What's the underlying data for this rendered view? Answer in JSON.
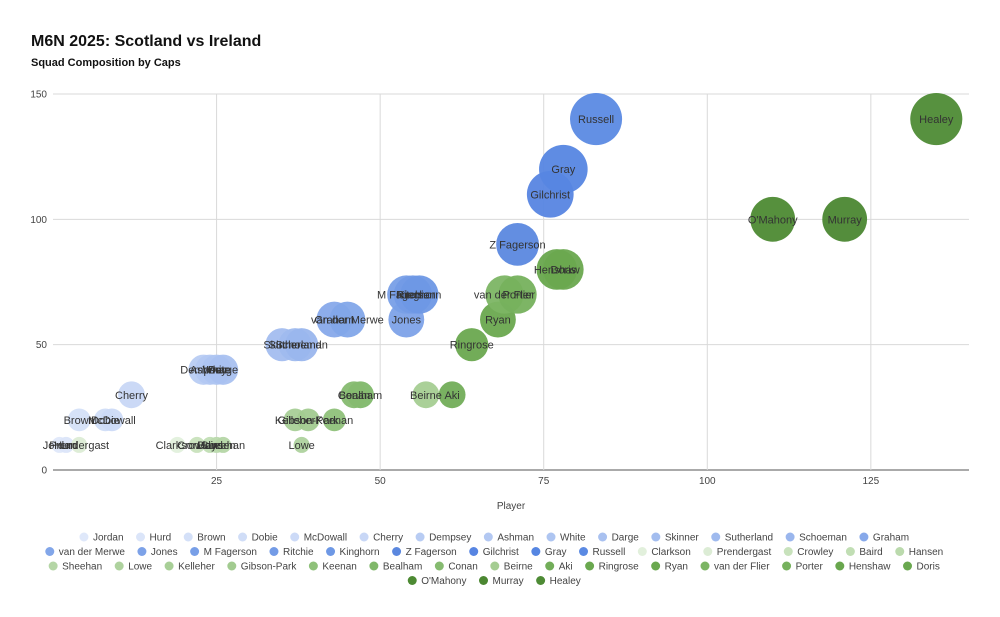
{
  "chart_data": {
    "type": "scatter",
    "title": "M6N 2025: Scotland vs Ireland",
    "subtitle": "Squad Composition by Caps",
    "xlabel": "Player",
    "ylabel": "",
    "xlim": [
      0,
      140
    ],
    "ylim": [
      0,
      150
    ],
    "xticks": [
      25,
      50,
      75,
      100,
      125
    ],
    "yticks": [
      0,
      50,
      100,
      150
    ],
    "grid": true,
    "legend_position": "bottom",
    "series": [
      {
        "name": "Jordan",
        "x": 1,
        "y": 10,
        "size": 1,
        "color": "#dfe8fa",
        "label": "Jordan"
      },
      {
        "name": "Hurd",
        "x": 2,
        "y": 10,
        "size": 1,
        "color": "#dbe5f9",
        "label": "Hurd"
      },
      {
        "name": "Brown",
        "x": 4,
        "y": 20,
        "size": 20,
        "color": "#d4e0f8",
        "label": "Brown"
      },
      {
        "name": "Dobie",
        "x": 8,
        "y": 20,
        "size": 20,
        "color": "#d0ddf7",
        "label": "Dobie"
      },
      {
        "name": "McDowall",
        "x": 9,
        "y": 20,
        "size": 20,
        "color": "#ccdaf7",
        "label": "McDowall"
      },
      {
        "name": "Cherry",
        "x": 12,
        "y": 30,
        "size": 30,
        "color": "#c8d7f6",
        "label": "Cherry"
      },
      {
        "name": "Dempsey",
        "x": 23,
        "y": 40,
        "size": 40,
        "color": "#b8ccf3",
        "label": "Dempsey"
      },
      {
        "name": "Ashman",
        "x": 24,
        "y": 40,
        "size": 40,
        "color": "#b3c8f2",
        "label": "Ashman"
      },
      {
        "name": "White",
        "x": 25,
        "y": 40,
        "size": 40,
        "color": "#aec5f1",
        "label": "White"
      },
      {
        "name": "Darge",
        "x": 26,
        "y": 40,
        "size": 40,
        "color": "#a9c1f0",
        "label": "Darge"
      },
      {
        "name": "Skinner",
        "x": 35,
        "y": 50,
        "size": 50,
        "color": "#a3bdef",
        "label": "Skinner"
      },
      {
        "name": "Sutherland",
        "x": 37,
        "y": 50,
        "size": 50,
        "color": "#9fbaee",
        "label": "Sutherland"
      },
      {
        "name": "Schoeman",
        "x": 38,
        "y": 50,
        "size": 50,
        "color": "#9ab6ed",
        "label": "Schoeman"
      },
      {
        "name": "Graham",
        "x": 43,
        "y": 60,
        "size": 60,
        "color": "#87a9ea",
        "label": "Graham"
      },
      {
        "name": "van der Merwe",
        "x": 45,
        "y": 60,
        "size": 60,
        "color": "#82a6e9",
        "label": "van der Merwe"
      },
      {
        "name": "Jones",
        "x": 54,
        "y": 60,
        "size": 60,
        "color": "#7da2e8",
        "label": "Jones"
      },
      {
        "name": "M Fagerson",
        "x": 54,
        "y": 70,
        "size": 70,
        "color": "#789fe7",
        "label": "M Fagerson"
      },
      {
        "name": "Ritchie",
        "x": 55,
        "y": 70,
        "size": 70,
        "color": "#739be6",
        "label": "Ritchie"
      },
      {
        "name": "Kinghorn",
        "x": 56,
        "y": 70,
        "size": 70,
        "color": "#6e98e5",
        "label": "Kinghorn"
      },
      {
        "name": "Z Fagerson",
        "x": 71,
        "y": 90,
        "size": 90,
        "color": "#5b88df",
        "label": "Z Fagerson"
      },
      {
        "name": "Gilchrist",
        "x": 76,
        "y": 110,
        "size": 110,
        "color": "#5785e2",
        "label": "Gilchrist"
      },
      {
        "name": "Gray",
        "x": 78,
        "y": 120,
        "size": 120,
        "color": "#5686e2",
        "label": "Gray"
      },
      {
        "name": "Russell",
        "x": 83,
        "y": 140,
        "size": 140,
        "color": "#5b8ae3",
        "label": "Russell"
      },
      {
        "name": "Clarkson",
        "x": 19,
        "y": 10,
        "size": 1,
        "color": "#e2f0dc",
        "label": "Clarkson"
      },
      {
        "name": "Prendergast",
        "x": 4,
        "y": 10,
        "size": 1,
        "color": "#dcecd5",
        "label": "Prendergast"
      },
      {
        "name": "Crowley",
        "x": 22,
        "y": 10,
        "size": 1,
        "color": "#c8e2bc",
        "label": "Crowley"
      },
      {
        "name": "Baird",
        "x": 24,
        "y": 10,
        "size": 1,
        "color": "#c1deb4",
        "label": "Baird"
      },
      {
        "name": "Hansen",
        "x": 25,
        "y": 10,
        "size": 1,
        "color": "#bbdaad",
        "label": "Hansen"
      },
      {
        "name": "Sheehan",
        "x": 26,
        "y": 10,
        "size": 1,
        "color": "#b5d6a6",
        "label": "Sheehan"
      },
      {
        "name": "Lowe",
        "x": 38,
        "y": 10,
        "size": 1,
        "color": "#aed29e",
        "label": "Lowe"
      },
      {
        "name": "Kelleher",
        "x": 37,
        "y": 20,
        "size": 20,
        "color": "#a8cf97",
        "label": "Kelleher"
      },
      {
        "name": "Gibson-Park",
        "x": 39,
        "y": 20,
        "size": 20,
        "color": "#a2cb90",
        "label": "Gibson-Park"
      },
      {
        "name": "Keenan",
        "x": 43,
        "y": 20,
        "size": 20,
        "color": "#8fc17a",
        "label": "Keenan"
      },
      {
        "name": "Bealham",
        "x": 47,
        "y": 30,
        "size": 30,
        "color": "#80b86a",
        "label": "Bealham"
      },
      {
        "name": "Conan",
        "x": 46,
        "y": 30,
        "size": 30,
        "color": "#86bb70",
        "label": "Conan"
      },
      {
        "name": "Beirne",
        "x": 57,
        "y": 30,
        "size": 30,
        "color": "#a5cd92",
        "label": "Beirne"
      },
      {
        "name": "Aki",
        "x": 61,
        "y": 30,
        "size": 30,
        "color": "#72ad59",
        "label": "Aki"
      },
      {
        "name": "Ringrose",
        "x": 64,
        "y": 50,
        "size": 50,
        "color": "#6aa84f",
        "label": "Ringrose"
      },
      {
        "name": "Ryan",
        "x": 68,
        "y": 60,
        "size": 60,
        "color": "#6aa84f",
        "label": "Ryan"
      },
      {
        "name": "van der Flier",
        "x": 69,
        "y": 70,
        "size": 70,
        "color": "#7cb564",
        "label": "van der Flier"
      },
      {
        "name": "Porter",
        "x": 71,
        "y": 70,
        "size": 70,
        "color": "#76b15d",
        "label": "Porter"
      },
      {
        "name": "Henshaw",
        "x": 77,
        "y": 80,
        "size": 80,
        "color": "#68a64d",
        "label": "Henshaw"
      },
      {
        "name": "Doris",
        "x": 78,
        "y": 80,
        "size": 80,
        "color": "#6aa84f",
        "label": "Doris"
      },
      {
        "name": "O'Mahony",
        "x": 110,
        "y": 100,
        "size": 100,
        "color": "#4d8a33",
        "label": "O'Mahony"
      },
      {
        "name": "Murray",
        "x": 121,
        "y": 100,
        "size": 100,
        "color": "#4b8731",
        "label": "Murray"
      },
      {
        "name": "Healey",
        "x": 135,
        "y": 140,
        "size": 140,
        "color": "#4e8b35",
        "label": "Healey"
      }
    ]
  }
}
